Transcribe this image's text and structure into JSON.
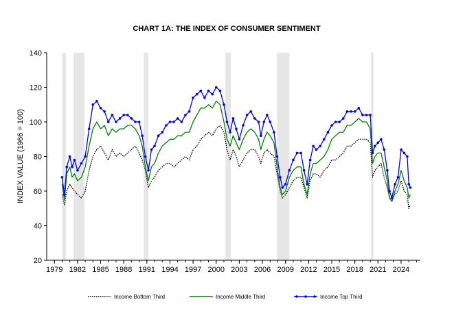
{
  "chart_data": {
    "type": "line",
    "title": "CHART 1A: THE INDEX OF CONSUMER SENTIMENT",
    "xlabel": "",
    "ylabel": "INDEX VALUE (1966 = 100)",
    "xlim": [
      1978,
      2026.5
    ],
    "ylim": [
      20,
      140
    ],
    "y_ticks": [
      20,
      40,
      60,
      80,
      100,
      120,
      140
    ],
    "x_ticks": [
      1979,
      1982,
      1985,
      1988,
      1991,
      1994,
      1997,
      2000,
      2003,
      2006,
      2009,
      2012,
      2015,
      2018,
      2021,
      2024
    ],
    "x_tick_labels": [
      "1979",
      "1982",
      "1985",
      "1988",
      "1991",
      "1994",
      "1997",
      "2000",
      "2003",
      "2006",
      "2009",
      "2012",
      "2015",
      "2018",
      "2021",
      "2024"
    ],
    "recessions": [
      [
        1980.0,
        1980.5
      ],
      [
        1981.5,
        1982.9
      ],
      [
        1990.6,
        1991.2
      ],
      [
        2001.2,
        2001.9
      ],
      [
        2007.9,
        2009.5
      ],
      [
        2020.1,
        2020.4
      ]
    ],
    "legend_position": "bottom",
    "series": [
      {
        "name": "Income Bottom Third",
        "style": "dotted",
        "color": "#000000",
        "x": [
          1980.0,
          1980.3,
          1980.6,
          1981.0,
          1981.3,
          1981.6,
          1982.0,
          1982.5,
          1983.0,
          1983.5,
          1984.0,
          1984.5,
          1985.0,
          1985.5,
          1986.0,
          1986.5,
          1987.0,
          1987.5,
          1988.0,
          1988.5,
          1989.0,
          1989.5,
          1990.0,
          1990.4,
          1990.8,
          1991.2,
          1991.6,
          1992.0,
          1992.5,
          1993.0,
          1993.5,
          1994.0,
          1994.5,
          1995.0,
          1995.5,
          1996.0,
          1996.5,
          1997.0,
          1997.5,
          1998.0,
          1998.5,
          1999.0,
          1999.5,
          2000.0,
          2000.5,
          2001.0,
          2001.4,
          2001.8,
          2002.2,
          2002.6,
          2003.0,
          2003.5,
          2004.0,
          2004.5,
          2005.0,
          2005.5,
          2005.8,
          2006.2,
          2006.6,
          2007.0,
          2007.5,
          2007.9,
          2008.3,
          2008.6,
          2009.0,
          2009.5,
          2010.0,
          2010.5,
          2011.0,
          2011.4,
          2011.8,
          2012.2,
          2012.6,
          2013.0,
          2013.5,
          2014.0,
          2014.5,
          2015.0,
          2015.5,
          2016.0,
          2016.5,
          2017.0,
          2017.5,
          2018.0,
          2018.5,
          2019.0,
          2019.5,
          2020.0,
          2020.3,
          2020.6,
          2021.0,
          2021.4,
          2021.8,
          2022.2,
          2022.5,
          2022.8,
          2023.2,
          2023.6,
          2024.0,
          2024.4,
          2024.8,
          2025.0,
          2025.2
        ],
        "values": [
          58,
          52,
          60,
          64,
          62,
          60,
          58,
          56,
          60,
          72,
          80,
          84,
          86,
          82,
          78,
          84,
          80,
          82,
          80,
          82,
          84,
          86,
          82,
          78,
          72,
          62,
          66,
          68,
          72,
          74,
          76,
          76,
          74,
          76,
          78,
          80,
          78,
          84,
          86,
          90,
          92,
          94,
          92,
          96,
          98,
          94,
          84,
          78,
          84,
          80,
          74,
          78,
          82,
          84,
          84,
          80,
          76,
          82,
          84,
          82,
          80,
          70,
          60,
          56,
          58,
          62,
          66,
          68,
          68,
          62,
          56,
          66,
          70,
          70,
          68,
          72,
          74,
          78,
          78,
          80,
          82,
          86,
          86,
          88,
          90,
          90,
          90,
          88,
          68,
          72,
          74,
          76,
          68,
          62,
          56,
          54,
          58,
          60,
          66,
          60,
          58,
          50,
          52
        ]
      },
      {
        "name": "Income Middle Third",
        "style": "solid",
        "color": "#008000",
        "x": [
          1980.0,
          1980.3,
          1980.6,
          1981.0,
          1981.3,
          1981.6,
          1982.0,
          1982.5,
          1983.0,
          1983.5,
          1984.0,
          1984.5,
          1985.0,
          1985.5,
          1986.0,
          1986.5,
          1987.0,
          1987.5,
          1988.0,
          1988.5,
          1989.0,
          1989.5,
          1990.0,
          1990.4,
          1990.8,
          1991.2,
          1991.6,
          1992.0,
          1992.5,
          1993.0,
          1993.5,
          1994.0,
          1994.5,
          1995.0,
          1995.5,
          1996.0,
          1996.5,
          1997.0,
          1997.5,
          1998.0,
          1998.5,
          1999.0,
          1999.5,
          2000.0,
          2000.5,
          2001.0,
          2001.4,
          2001.8,
          2002.2,
          2002.6,
          2003.0,
          2003.5,
          2004.0,
          2004.5,
          2005.0,
          2005.5,
          2005.8,
          2006.2,
          2006.6,
          2007.0,
          2007.5,
          2007.9,
          2008.3,
          2008.6,
          2009.0,
          2009.5,
          2010.0,
          2010.5,
          2011.0,
          2011.4,
          2011.8,
          2012.2,
          2012.6,
          2013.0,
          2013.5,
          2014.0,
          2014.5,
          2015.0,
          2015.5,
          2016.0,
          2016.5,
          2017.0,
          2017.5,
          2018.0,
          2018.5,
          2019.0,
          2019.5,
          2020.0,
          2020.3,
          2020.6,
          2021.0,
          2021.4,
          2021.8,
          2022.2,
          2022.5,
          2022.8,
          2023.2,
          2023.6,
          2024.0,
          2024.4,
          2024.8,
          2025.0,
          2025.2
        ],
        "values": [
          64,
          55,
          70,
          74,
          68,
          70,
          66,
          68,
          74,
          86,
          96,
          100,
          96,
          98,
          92,
          96,
          94,
          96,
          96,
          98,
          98,
          96,
          92,
          86,
          74,
          66,
          74,
          76,
          82,
          86,
          88,
          90,
          90,
          92,
          92,
          94,
          94,
          100,
          104,
          108,
          108,
          110,
          108,
          112,
          110,
          100,
          90,
          86,
          92,
          88,
          84,
          90,
          94,
          96,
          94,
          90,
          84,
          90,
          94,
          92,
          88,
          74,
          62,
          58,
          60,
          68,
          72,
          74,
          74,
          64,
          58,
          70,
          76,
          76,
          78,
          80,
          84,
          90,
          92,
          94,
          94,
          98,
          98,
          100,
          102,
          100,
          100,
          96,
          76,
          80,
          82,
          82,
          74,
          66,
          56,
          54,
          60,
          64,
          72,
          66,
          62,
          56,
          58
        ]
      },
      {
        "name": "Income Top Third",
        "style": "solid-marker",
        "color": "#0000ff",
        "x": [
          1980.0,
          1980.3,
          1980.6,
          1981.0,
          1981.3,
          1981.6,
          1982.0,
          1982.5,
          1983.0,
          1983.5,
          1984.0,
          1984.5,
          1985.0,
          1985.5,
          1986.0,
          1986.5,
          1987.0,
          1987.5,
          1988.0,
          1988.5,
          1989.0,
          1989.5,
          1990.0,
          1990.4,
          1990.8,
          1991.2,
          1991.6,
          1992.0,
          1992.5,
          1993.0,
          1993.5,
          1994.0,
          1994.5,
          1995.0,
          1995.5,
          1996.0,
          1996.5,
          1997.0,
          1997.5,
          1998.0,
          1998.5,
          1999.0,
          1999.5,
          2000.0,
          2000.5,
          2001.0,
          2001.4,
          2001.8,
          2002.2,
          2002.6,
          2003.0,
          2003.5,
          2004.0,
          2004.5,
          2005.0,
          2005.5,
          2005.8,
          2006.2,
          2006.6,
          2007.0,
          2007.5,
          2007.9,
          2008.3,
          2008.6,
          2009.0,
          2009.5,
          2010.0,
          2010.5,
          2011.0,
          2011.4,
          2011.8,
          2012.2,
          2012.6,
          2013.0,
          2013.5,
          2014.0,
          2014.5,
          2015.0,
          2015.5,
          2016.0,
          2016.5,
          2017.0,
          2017.5,
          2018.0,
          2018.5,
          2019.0,
          2019.5,
          2020.0,
          2020.3,
          2020.6,
          2021.0,
          2021.4,
          2021.8,
          2022.2,
          2022.5,
          2022.8,
          2023.2,
          2023.6,
          2024.0,
          2024.4,
          2024.8,
          2025.0,
          2025.2
        ],
        "values": [
          68,
          58,
          74,
          80,
          74,
          78,
          72,
          76,
          80,
          96,
          110,
          112,
          108,
          106,
          100,
          104,
          100,
          102,
          104,
          104,
          102,
          100,
          100,
          92,
          80,
          72,
          84,
          86,
          92,
          94,
          98,
          100,
          100,
          102,
          100,
          104,
          106,
          114,
          116,
          118,
          114,
          118,
          116,
          120,
          118,
          110,
          100,
          94,
          102,
          96,
          90,
          98,
          104,
          106,
          102,
          100,
          92,
          100,
          104,
          100,
          94,
          80,
          68,
          62,
          64,
          72,
          78,
          82,
          82,
          72,
          64,
          78,
          86,
          84,
          86,
          90,
          94,
          98,
          100,
          100,
          102,
          106,
          106,
          106,
          108,
          104,
          104,
          104,
          82,
          86,
          88,
          90,
          84,
          72,
          60,
          56,
          64,
          68,
          84,
          82,
          80,
          64,
          62
        ]
      }
    ]
  }
}
